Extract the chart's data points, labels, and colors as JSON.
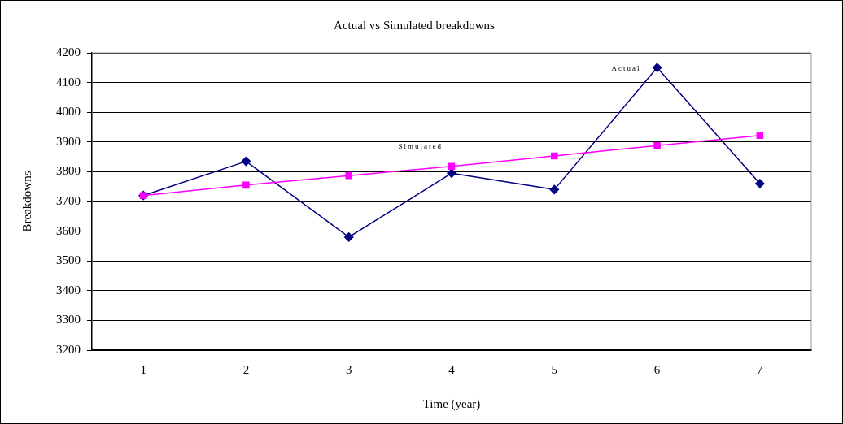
{
  "chart_data": {
    "type": "line",
    "title": "Actual vs Simulated breakdowns",
    "xlabel": "Time (year)",
    "ylabel": "Breakdowns",
    "categories": [
      "1",
      "2",
      "3",
      "4",
      "5",
      "6",
      "7"
    ],
    "series": [
      {
        "name": "Actual",
        "color": "#000080",
        "marker": "diamond",
        "values": [
          3720,
          3835,
          3580,
          3795,
          3740,
          4150,
          3760
        ]
      },
      {
        "name": "Simulated",
        "color": "#ff00ff",
        "marker": "square",
        "values": [
          3720,
          3755,
          3787,
          3818,
          3853,
          3888,
          3922
        ]
      }
    ],
    "ylim": [
      3200,
      4200
    ],
    "yticks": [
      3200,
      3300,
      3400,
      3500,
      3600,
      3700,
      3800,
      3900,
      4000,
      4100,
      4200
    ],
    "grid": "y",
    "legend": false
  }
}
